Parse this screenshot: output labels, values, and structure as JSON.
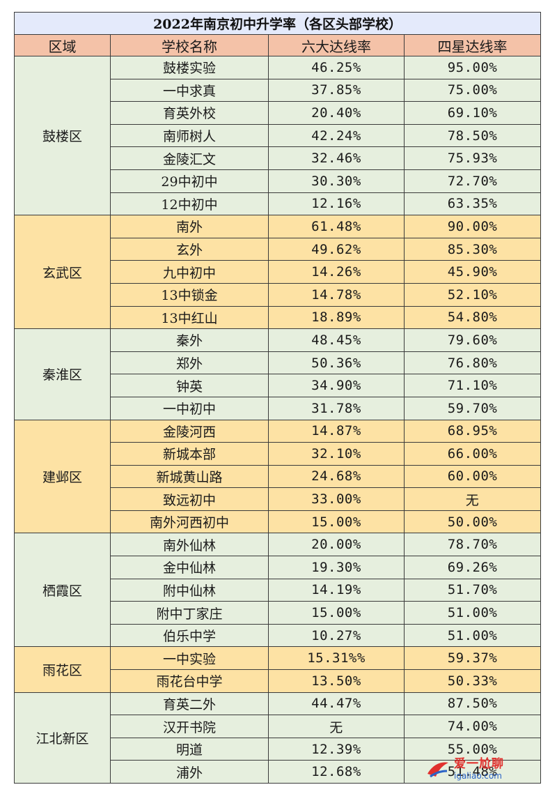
{
  "title": "2022年南京初中升学率（各区头部学校）",
  "headers": [
    "区域",
    "学校名称",
    "六大达线率",
    "四星达线率"
  ],
  "colors": {
    "green_band": "#e6efde",
    "yellow_band": "#fde2a4",
    "header": "#f4c2a8",
    "title": "#e4eafb"
  },
  "groups": [
    {
      "district": "鼓楼区",
      "band": "green",
      "rows": [
        {
          "school": "鼓楼实验",
          "six": "46.25%",
          "four": "95.00%"
        },
        {
          "school": "一中求真",
          "six": "37.85%",
          "four": "75.00%"
        },
        {
          "school": "育英外校",
          "six": "20.40%",
          "four": "69.10%"
        },
        {
          "school": "南师树人",
          "six": "42.24%",
          "four": "78.50%"
        },
        {
          "school": "金陵汇文",
          "six": "32.46%",
          "four": "75.93%"
        },
        {
          "school": "29中初中",
          "six": "30.30%",
          "four": "72.70%"
        },
        {
          "school": "12中初中",
          "six": "12.16%",
          "four": "63.35%"
        }
      ]
    },
    {
      "district": "玄武区",
      "band": "yellow",
      "rows": [
        {
          "school": "南外",
          "six": "61.48%",
          "four": "90.00%"
        },
        {
          "school": "玄外",
          "six": "49.62%",
          "four": "85.30%"
        },
        {
          "school": "九中初中",
          "six": "14.26%",
          "four": "45.90%"
        },
        {
          "school": "13中锁金",
          "six": "14.78%",
          "four": "52.10%"
        },
        {
          "school": "13中红山",
          "six": "18.89%",
          "four": "54.80%"
        }
      ]
    },
    {
      "district": "秦淮区",
      "band": "green",
      "rows": [
        {
          "school": "秦外",
          "six": "48.45%",
          "four": "79.60%"
        },
        {
          "school": "郑外",
          "six": "50.36%",
          "four": "76.80%"
        },
        {
          "school": "钟英",
          "six": "34.90%",
          "four": "71.10%"
        },
        {
          "school": "一中初中",
          "six": "31.78%",
          "four": "59.70%"
        }
      ]
    },
    {
      "district": "建邺区",
      "band": "yellow",
      "rows": [
        {
          "school": "金陵河西",
          "six": "14.87%",
          "four": "68.95%"
        },
        {
          "school": "新城本部",
          "six": "32.10%",
          "four": "66.00%"
        },
        {
          "school": "新城黄山路",
          "six": "24.68%",
          "four": "60.00%"
        },
        {
          "school": "致远初中",
          "six": "33.00%",
          "four": "无"
        },
        {
          "school": "南外河西初中",
          "six": "15.00%",
          "four": "50.00%"
        }
      ]
    },
    {
      "district": "栖霞区",
      "band": "green",
      "rows": [
        {
          "school": "南外仙林",
          "six": "20.00%",
          "four": "78.70%"
        },
        {
          "school": "金中仙林",
          "six": "19.30%",
          "four": "69.26%"
        },
        {
          "school": "附中仙林",
          "six": "14.19%",
          "four": "51.70%"
        },
        {
          "school": "附中丁家庄",
          "six": "15.00%",
          "four": "51.00%"
        },
        {
          "school": "伯乐中学",
          "six": "10.27%",
          "four": "51.00%"
        }
      ]
    },
    {
      "district": "雨花区",
      "band": "yellow",
      "rows": [
        {
          "school": "一中实验",
          "six": "15.31%%",
          "four": "59.37%"
        },
        {
          "school": "雨花台中学",
          "six": "13.50%",
          "four": "50.33%"
        }
      ]
    },
    {
      "district": "江北新区",
      "band": "green",
      "rows": [
        {
          "school": "育英二外",
          "six": "44.47%",
          "four": "87.50%"
        },
        {
          "school": "汉开书院",
          "six": "无",
          "four": "74.00%"
        },
        {
          "school": "明道",
          "six": "12.39%",
          "four": "55.00%"
        },
        {
          "school": "浦外",
          "six": "12.68%",
          "four": "51.48%"
        }
      ]
    }
  ],
  "watermark": {
    "title": "爱一尬聊",
    "url": "igaliao.com"
  }
}
